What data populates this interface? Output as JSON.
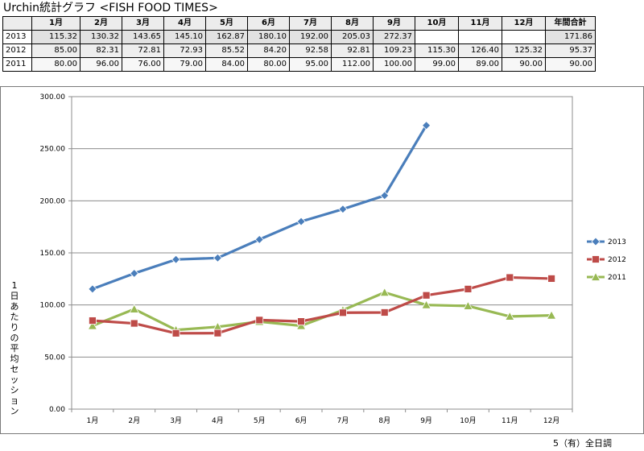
{
  "title": "Urchin統計グラフ <FISH FOOD TIMES>",
  "table": {
    "headers": [
      "",
      "1月",
      "2月",
      "3月",
      "4月",
      "5月",
      "6月",
      "7月",
      "8月",
      "9月",
      "10月",
      "11月",
      "12月",
      "年間合計"
    ],
    "rows": [
      {
        "year": "2013",
        "values": [
          "115.32",
          "130.32",
          "143.65",
          "145.10",
          "162.87",
          "180.10",
          "192.00",
          "205.03",
          "272.37",
          "",
          "",
          "",
          "171.86"
        ]
      },
      {
        "year": "2012",
        "values": [
          "85.00",
          "82.31",
          "72.81",
          "72.93",
          "85.52",
          "84.20",
          "92.58",
          "92.81",
          "109.23",
          "115.30",
          "126.40",
          "125.32",
          "95.37"
        ]
      },
      {
        "year": "2011",
        "values": [
          "80.00",
          "96.00",
          "76.00",
          "79.00",
          "84.00",
          "80.00",
          "95.00",
          "112.00",
          "100.00",
          "99.00",
          "89.00",
          "90.00",
          "90.00"
        ]
      }
    ]
  },
  "chart_data": {
    "type": "line",
    "categories": [
      "1月",
      "2月",
      "3月",
      "4月",
      "5月",
      "6月",
      "7月",
      "8月",
      "9月",
      "10月",
      "11月",
      "12月"
    ],
    "ylabel": "1日あたりの平均セッション",
    "ylim": [
      0,
      300
    ],
    "yticks": [
      "0.00",
      "50.00",
      "100.00",
      "150.00",
      "200.00",
      "250.00",
      "300.00"
    ],
    "legend_position": "right",
    "grid": true,
    "series": [
      {
        "name": "2013",
        "color": "#4a7ebb",
        "marker": "diamond",
        "values": [
          115.32,
          130.32,
          143.65,
          145.1,
          162.87,
          180.1,
          192.0,
          205.03,
          272.37,
          null,
          null,
          null
        ]
      },
      {
        "name": "2012",
        "color": "#be4b48",
        "marker": "square",
        "values": [
          85.0,
          82.31,
          72.81,
          72.93,
          85.52,
          84.2,
          92.58,
          92.81,
          109.23,
          115.3,
          126.4,
          125.32
        ]
      },
      {
        "name": "2011",
        "color": "#98b954",
        "marker": "triangle",
        "values": [
          80.0,
          96.0,
          76.0,
          79.0,
          84.0,
          80.0,
          95.0,
          112.0,
          100.0,
          99.0,
          89.0,
          90.0
        ]
      }
    ]
  },
  "footnote": "5（有）全日調"
}
